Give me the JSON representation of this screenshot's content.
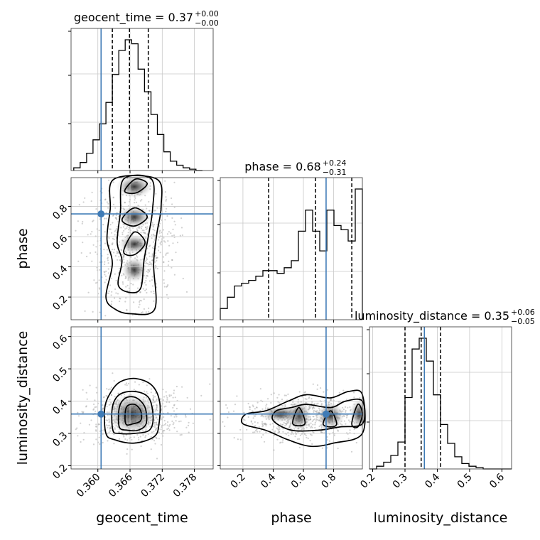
{
  "chart_data": {
    "type": "corner",
    "parameters": [
      "geocent_time",
      "phase",
      "luminosity_distance"
    ],
    "truths": [
      0.3606,
      0.75,
      0.36
    ],
    "truth_color": "#3f7bb6",
    "ranges": [
      [
        0.355,
        0.3815
      ],
      [
        0.05,
        0.99
      ],
      [
        0.19,
        0.63
      ]
    ],
    "titles": [
      {
        "label": "geocent_time = 0.37",
        "sup": "+0.00",
        "sub": "−0.00"
      },
      {
        "label": "phase = 0.68",
        "sup": "+0.24",
        "sub": "−0.31"
      },
      {
        "label": "luminosity_distance = 0.35",
        "sup": "+0.06",
        "sub": "−0.05"
      }
    ],
    "quantiles": [
      [
        0.3627,
        0.3659,
        0.3694
      ],
      [
        0.37,
        0.68,
        0.92
      ],
      [
        0.3,
        0.35,
        0.41
      ]
    ],
    "ticks": {
      "geocent_time": {
        "values": [
          0.36,
          0.366,
          0.372,
          0.378
        ],
        "labels": [
          "0.360",
          "0.366",
          "0.372",
          "0.378"
        ]
      },
      "phase": {
        "values": [
          0.2,
          0.4,
          0.6,
          0.8
        ],
        "labels": [
          "0.2",
          "0.4",
          "0.6",
          "0.8"
        ]
      },
      "luminosity_distance": {
        "values": [
          0.2,
          0.3,
          0.4,
          0.5,
          0.6
        ],
        "labels": [
          "0.2",
          "0.3",
          "0.4",
          "0.5",
          "0.6"
        ]
      }
    },
    "histograms": [
      {
        "param": "geocent_time",
        "edges": [
          0.3555,
          0.3567,
          0.3579,
          0.3591,
          0.3603,
          0.3615,
          0.3627,
          0.3639,
          0.3651,
          0.3663,
          0.3675,
          0.3687,
          0.3699,
          0.3711,
          0.3723,
          0.3735,
          0.3747,
          0.3759,
          0.3771,
          0.3783,
          0.3795
        ],
        "counts": [
          0.02,
          0.06,
          0.13,
          0.23,
          0.35,
          0.51,
          0.72,
          0.9,
          0.98,
          0.95,
          0.76,
          0.59,
          0.42,
          0.27,
          0.14,
          0.07,
          0.04,
          0.02,
          0.01,
          0.0
        ]
      },
      {
        "param": "phase",
        "edges": [
          0.05,
          0.097,
          0.144,
          0.191,
          0.238,
          0.285,
          0.332,
          0.379,
          0.426,
          0.473,
          0.52,
          0.567,
          0.614,
          0.661,
          0.708,
          0.755,
          0.802,
          0.849,
          0.896,
          0.943,
          0.99
        ],
        "counts": [
          0.08,
          0.16,
          0.24,
          0.26,
          0.28,
          0.31,
          0.35,
          0.35,
          0.33,
          0.37,
          0.42,
          0.63,
          0.78,
          0.63,
          0.49,
          0.78,
          0.67,
          0.64,
          0.56,
          0.93
        ]
      },
      {
        "param": "luminosity_distance",
        "edges": [
          0.19,
          0.212,
          0.234,
          0.256,
          0.278,
          0.3,
          0.322,
          0.344,
          0.366,
          0.388,
          0.41,
          0.432,
          0.454,
          0.476,
          0.498,
          0.52,
          0.542,
          0.564,
          0.586,
          0.608,
          0.63
        ],
        "counts": [
          0.0,
          0.02,
          0.05,
          0.1,
          0.2,
          0.53,
          0.89,
          0.97,
          0.8,
          0.55,
          0.33,
          0.19,
          0.09,
          0.04,
          0.02,
          0.01,
          0.0,
          0.0,
          0.0,
          0.0
        ]
      }
    ],
    "contours": [
      {
        "x": "geocent_time",
        "y": "phase",
        "levels": [
          [
            [
              0.3615,
              0.2
            ],
            [
              0.3627,
              0.42
            ],
            [
              0.3617,
              0.58
            ],
            [
              0.3623,
              0.78
            ],
            [
              0.363,
              0.98
            ],
            [
              0.371,
              0.98
            ],
            [
              0.3718,
              0.8
            ],
            [
              0.371,
              0.62
            ],
            [
              0.3704,
              0.42
            ],
            [
              0.3706,
              0.12
            ],
            [
              0.366,
              0.09
            ],
            [
              0.3632,
              0.12
            ]
          ],
          [
            [
              0.3638,
              0.28
            ],
            [
              0.3645,
              0.44
            ],
            [
              0.3636,
              0.56
            ],
            [
              0.3642,
              0.76
            ],
            [
              0.3648,
              0.98
            ],
            [
              0.37,
              0.98
            ],
            [
              0.3702,
              0.78
            ],
            [
              0.3694,
              0.6
            ],
            [
              0.3686,
              0.44
            ],
            [
              0.368,
              0.26
            ],
            [
              0.366,
              0.23
            ]
          ],
          [
            [
              0.3648,
              0.5
            ],
            [
              0.3668,
              0.63
            ],
            [
              0.3688,
              0.56
            ],
            [
              0.3668,
              0.48
            ]
          ],
          [
            [
              0.3645,
              0.71
            ],
            [
              0.3668,
              0.79
            ],
            [
              0.3692,
              0.73
            ],
            [
              0.3668,
              0.67
            ]
          ],
          [
            [
              0.365,
              0.9
            ],
            [
              0.367,
              0.98
            ],
            [
              0.3692,
              0.95
            ],
            [
              0.3672,
              0.89
            ]
          ]
        ]
      },
      {
        "x": "geocent_time",
        "y": "luminosity_distance",
        "levels": [
          [
            [
              0.3615,
              0.3
            ],
            [
              0.3613,
              0.38
            ],
            [
              0.3625,
              0.43
            ],
            [
              0.3642,
              0.46
            ],
            [
              0.367,
              0.47
            ],
            [
              0.37,
              0.45
            ],
            [
              0.3715,
              0.4
            ],
            [
              0.3714,
              0.33
            ],
            [
              0.3705,
              0.29
            ],
            [
              0.3668,
              0.27
            ],
            [
              0.3632,
              0.28
            ]
          ],
          [
            [
              0.3628,
              0.31
            ],
            [
              0.3627,
              0.38
            ],
            [
              0.364,
              0.42
            ],
            [
              0.3668,
              0.43
            ],
            [
              0.3695,
              0.41
            ],
            [
              0.3703,
              0.35
            ],
            [
              0.3696,
              0.31
            ],
            [
              0.3668,
              0.3
            ],
            [
              0.364,
              0.3
            ]
          ],
          [
            [
              0.364,
              0.32
            ],
            [
              0.364,
              0.38
            ],
            [
              0.3652,
              0.41
            ],
            [
              0.3672,
              0.41
            ],
            [
              0.3688,
              0.38
            ],
            [
              0.369,
              0.33
            ],
            [
              0.3675,
              0.31
            ],
            [
              0.3655,
              0.31
            ]
          ],
          [
            [
              0.3652,
              0.33
            ],
            [
              0.3653,
              0.38
            ],
            [
              0.3668,
              0.39
            ],
            [
              0.368,
              0.37
            ],
            [
              0.368,
              0.34
            ],
            [
              0.3666,
              0.33
            ]
          ]
        ]
      },
      {
        "x": "phase",
        "y": "luminosity_distance",
        "levels": [
          [
            [
              0.2,
              0.33
            ],
            [
              0.35,
              0.31
            ],
            [
              0.5,
              0.28
            ],
            [
              0.65,
              0.26
            ],
            [
              0.8,
              0.27
            ],
            [
              0.99,
              0.3
            ],
            [
              0.99,
              0.42
            ],
            [
              0.9,
              0.43
            ],
            [
              0.78,
              0.41
            ],
            [
              0.62,
              0.42
            ],
            [
              0.5,
              0.4
            ],
            [
              0.35,
              0.37
            ],
            [
              0.22,
              0.36
            ]
          ],
          [
            [
              0.4,
              0.34
            ],
            [
              0.52,
              0.31
            ],
            [
              0.7,
              0.31
            ],
            [
              0.84,
              0.32
            ],
            [
              0.99,
              0.33
            ],
            [
              0.99,
              0.4
            ],
            [
              0.88,
              0.4
            ],
            [
              0.78,
              0.38
            ],
            [
              0.62,
              0.39
            ],
            [
              0.52,
              0.38
            ],
            [
              0.42,
              0.37
            ]
          ],
          [
            [
              0.53,
              0.33
            ],
            [
              0.57,
              0.38
            ],
            [
              0.61,
              0.33
            ]
          ],
          [
            [
              0.73,
              0.33
            ],
            [
              0.78,
              0.37
            ],
            [
              0.82,
              0.33
            ],
            [
              0.78,
              0.32
            ]
          ],
          [
            [
              0.92,
              0.33
            ],
            [
              0.96,
              0.39
            ],
            [
              0.99,
              0.36
            ],
            [
              0.96,
              0.32
            ]
          ]
        ]
      }
    ]
  }
}
